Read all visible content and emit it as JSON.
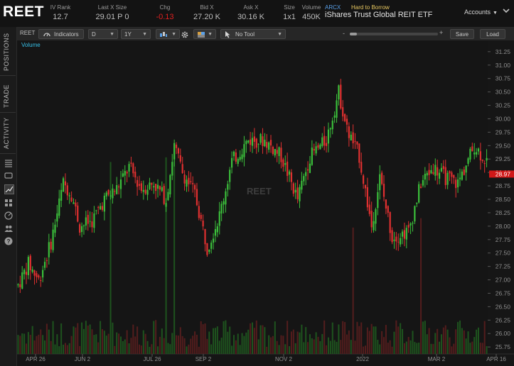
{
  "header": {
    "symbol": "REET",
    "fields": [
      {
        "label": "IV Rank",
        "value": "12.7",
        "negative": false
      },
      {
        "label": "Last X Size",
        "value": "29.01 P 0",
        "negative": false
      },
      {
        "label": "Chg",
        "value": "-0.13",
        "negative": true
      },
      {
        "label": "Bid X",
        "value": "27.20 K",
        "negative": false
      },
      {
        "label": "Ask X",
        "value": "30.16 K",
        "negative": false
      },
      {
        "label": "Size",
        "value": "1x1",
        "negative": false
      },
      {
        "label": "Volume",
        "value": "450K",
        "negative": false
      }
    ],
    "exchange": "ARCX",
    "borrow_status": "Hard to Borrow",
    "company": "iShares Trust Global REIT ETF",
    "accounts_label": "Accounts"
  },
  "left_tabs": [
    "POSITIONS",
    "TRADE",
    "ACTIVITY"
  ],
  "left_icons": [
    "list-icon",
    "chat-icon",
    "chart-icon",
    "grid-icon",
    "gauge-icon",
    "people-icon",
    "help-icon"
  ],
  "toolbar": {
    "symbol": "REET",
    "indicators_label": "Indicators",
    "interval": "D",
    "range": "1Y",
    "drawing_tool": "No Tool",
    "save_label": "Save",
    "load_label": "Load"
  },
  "chart": {
    "volume_label": "Volume",
    "watermark": "REET",
    "last_price_tag": "28.97",
    "up_color": "#3bbf3b",
    "down_color": "#e03030"
  },
  "chart_data": {
    "type": "candlestick",
    "y_ticks": [
      "31.25",
      "31.00",
      "30.75",
      "30.50",
      "30.25",
      "30.00",
      "29.75",
      "29.50",
      "29.25",
      "29.00",
      "28.75",
      "28.50",
      "28.25",
      "28.00",
      "27.75",
      "27.50",
      "27.25",
      "27.00",
      "26.75",
      "26.50",
      "26.25",
      "26.00",
      "25.75"
    ],
    "x_ticks": [
      "APR 26",
      "JUN 2",
      "JUL 26",
      "SEP 2",
      "NOV 2",
      "2022",
      "MAR 2",
      "APR 16"
    ],
    "ylim": [
      25.62,
      31.38
    ],
    "close_path": [
      [
        0,
        26.9
      ],
      [
        5,
        27.3
      ],
      [
        10,
        27.0
      ],
      [
        16,
        27.7
      ],
      [
        22,
        28.8
      ],
      [
        26,
        28.6
      ],
      [
        30,
        28.0
      ],
      [
        36,
        28.1
      ],
      [
        42,
        28.5
      ],
      [
        48,
        28.7
      ],
      [
        54,
        29.1
      ],
      [
        60,
        28.7
      ],
      [
        66,
        28.8
      ],
      [
        72,
        28.5
      ],
      [
        76,
        29.5
      ],
      [
        80,
        29.0
      ],
      [
        86,
        28.6
      ],
      [
        92,
        27.6
      ],
      [
        98,
        28.2
      ],
      [
        104,
        29.2
      ],
      [
        112,
        29.6
      ],
      [
        120,
        29.6
      ],
      [
        128,
        29.3
      ],
      [
        136,
        28.5
      ],
      [
        142,
        29.3
      ],
      [
        150,
        29.6
      ],
      [
        156,
        30.5
      ],
      [
        160,
        29.8
      ],
      [
        166,
        29.3
      ],
      [
        172,
        28.0
      ],
      [
        176,
        28.9
      ],
      [
        182,
        27.8
      ],
      [
        190,
        27.9
      ],
      [
        196,
        28.8
      ],
      [
        202,
        29.1
      ],
      [
        208,
        28.9
      ],
      [
        214,
        28.8
      ],
      [
        222,
        29.5
      ],
      [
        228,
        29.2
      ]
    ],
    "volume_spikes": [
      {
        "x": 45,
        "h": 0.82
      },
      {
        "x": 72,
        "h": 0.84
      },
      {
        "x": 76,
        "h": 0.88
      },
      {
        "x": 163,
        "h": 0.54
      },
      {
        "x": 196,
        "h": 0.58
      }
    ]
  }
}
